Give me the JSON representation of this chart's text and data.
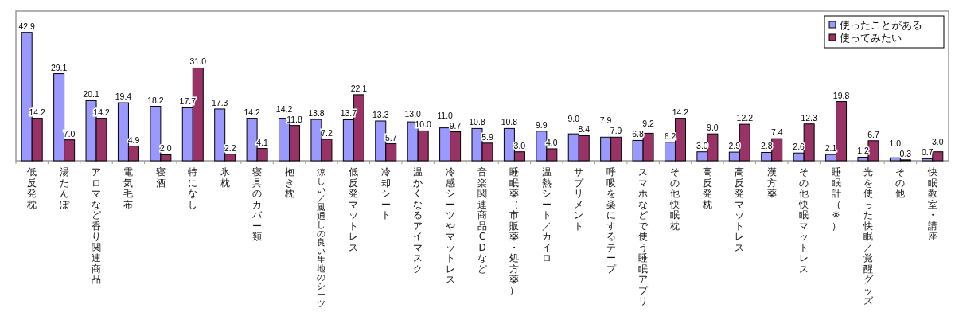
{
  "chart_data": {
    "type": "bar",
    "categories": [
      "低反発枕",
      "湯たんぽ",
      "アロマなど香り関連商品",
      "電気毛布",
      "寝酒",
      "特になし",
      "氷枕",
      "寝具のカバー類",
      "抱き枕",
      "涼しい／風通しの良い生地のシーツ",
      "低反発マットレス",
      "冷却シート",
      "温かくなるアイマスク",
      "冷感シーツやマットレス",
      "音楽関連商品CDなど",
      "睡眠薬（市販薬・処方薬）",
      "温熱シート／カイロ",
      "サプリメント",
      "呼吸を楽にするテープ",
      "スマホなどで使う睡眠アプリ",
      "その他快眠枕",
      "高反発枕",
      "高反発マットレス",
      "漢方薬",
      "その他快眠マットレス",
      "睡眠計（※）",
      "光を使った快眠／覚醒グッズ",
      "その他",
      "快眠教室・講座"
    ],
    "series": [
      {
        "name": "使ったことがある",
        "color": "#9999ff",
        "values": [
          42.9,
          29.1,
          20.1,
          19.4,
          18.2,
          17.7,
          17.3,
          14.2,
          14.2,
          13.8,
          13.7,
          13.3,
          13.0,
          11.0,
          10.8,
          10.8,
          9.9,
          9.0,
          7.9,
          6.8,
          6.2,
          3.0,
          2.9,
          2.8,
          2.6,
          2.1,
          1.2,
          1.0,
          0.7
        ],
        "value_labels": [
          "42.9",
          "29.1",
          "20.1",
          "19.4",
          "18.2",
          "17.7",
          "17.3",
          "14.2",
          "14.2",
          "13.8",
          "13.7",
          "13.3",
          "13.0",
          "11.0",
          "10.8",
          "10.8",
          "9.9",
          "9.0",
          "7.9",
          "6.8",
          "6.2",
          "3.0",
          "2.9",
          "2.8",
          "2.6",
          "2.1",
          "1.2",
          "1.0",
          "0.7"
        ]
      },
      {
        "name": "使ってみたい",
        "color": "#993366",
        "values": [
          14.2,
          7.0,
          14.2,
          4.9,
          2.0,
          31.0,
          2.2,
          4.1,
          11.8,
          7.2,
          22.1,
          5.7,
          10.0,
          9.7,
          5.9,
          3.0,
          4.0,
          8.4,
          7.9,
          9.2,
          14.2,
          9.0,
          12.2,
          7.4,
          12.3,
          19.8,
          6.7,
          0.3,
          3.0
        ],
        "value_labels": [
          "14.2",
          "7.0",
          "14.2",
          "4.9",
          "2.0",
          "31.0",
          "2.2",
          "4.1",
          "11.8",
          "7.2",
          "22.1",
          "5.7",
          "10.0",
          "9.7",
          "5.9",
          "3.0",
          "4.0",
          "8.4",
          "7.9",
          "9.2",
          "14.2",
          "9.0",
          "12.2",
          "7.4",
          "12.3",
          "19.8",
          "6.7",
          "0.3",
          "3.0"
        ]
      }
    ],
    "ylim": [
      0,
      50
    ],
    "tick_labels": "x",
    "legend": "top right"
  }
}
